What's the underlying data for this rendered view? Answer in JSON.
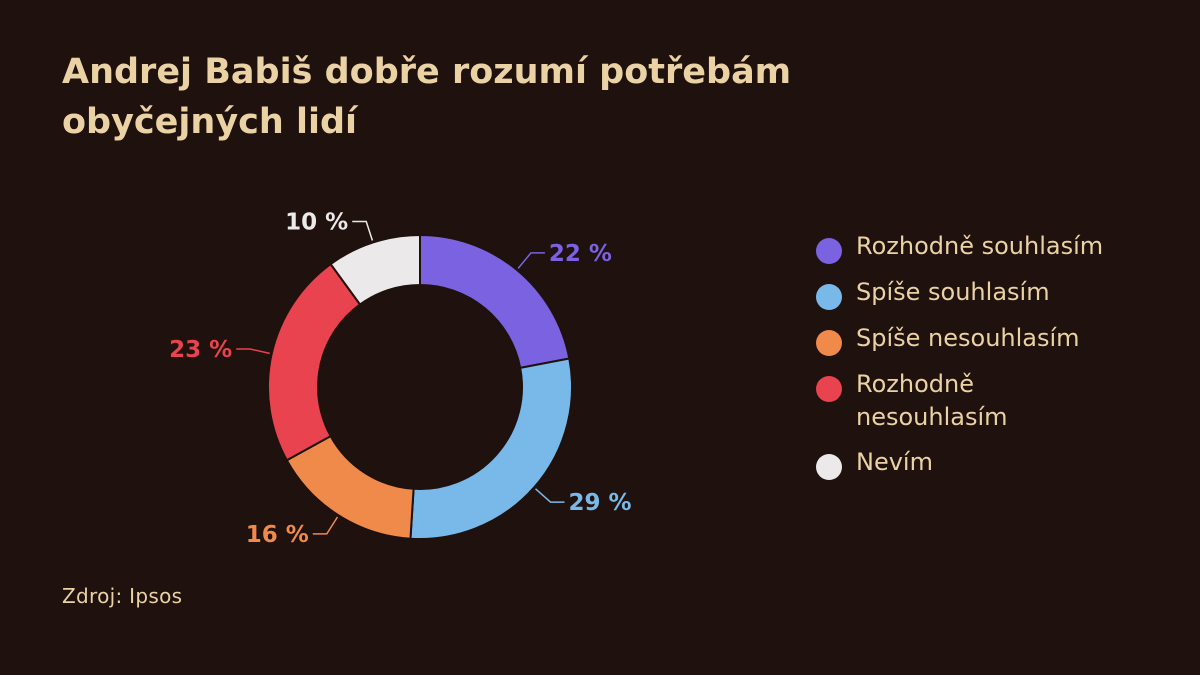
{
  "title": "Andrej Babiš dobře rozumí potřebám obyčejných lidí",
  "source": "Zdroj: Ipsos",
  "chart_data": {
    "type": "pie",
    "variant": "donut",
    "title": "Andrej Babiš dobře rozumí potřebám obyčejných lidí",
    "categories": [
      "Rozhodně souhlasím",
      "Spíše souhlasím",
      "Spíše nesouhlasím",
      "Rozhodně nesouhlasím",
      "Nevím"
    ],
    "values": [
      22,
      29,
      16,
      23,
      10
    ],
    "value_labels": [
      "22 %",
      "29 %",
      "16 %",
      "23 %",
      "10 %"
    ],
    "colors": [
      "#7a62e0",
      "#79b9ea",
      "#ef8a4a",
      "#e8434f",
      "#ebe9e9"
    ],
    "legend_position": "right",
    "start_angle": "top, clockwise"
  }
}
